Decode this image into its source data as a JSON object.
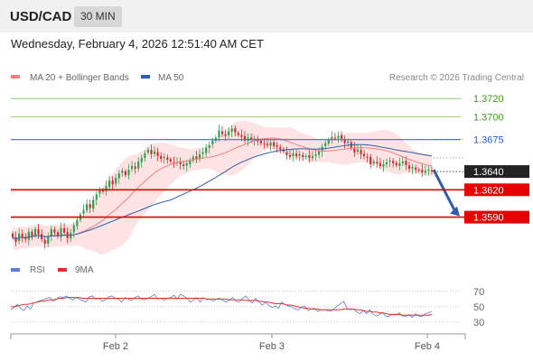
{
  "header": {
    "symbol": "USD/CAD",
    "timeframe": "30 MIN"
  },
  "timestamp": "Wednesday, February 4, 2026 12:51:40 AM CET",
  "legend": {
    "ma20": {
      "label": "MA 20 + Bollinger Bands",
      "color": "#f08080"
    },
    "ma50": {
      "label": "MA 50",
      "color": "#2e5fa8"
    }
  },
  "credit": "Research © 2026 Trading Central",
  "colors": {
    "candle_up": "#2e9e4f",
    "candle_down": "#d42a2a",
    "band_fill": "#fde3e3",
    "resistance": "#7cc45a",
    "pivot": "#3a6fd8",
    "support": "#e60000",
    "rsi": "#5b7fd8",
    "rsi_ma": "#e03030",
    "arrow": "#2e5fa8"
  },
  "chart_data": [
    {
      "type": "candlestick",
      "title": "USD/CAD 30 MIN",
      "ylim": [
        1.3554,
        1.3737
      ],
      "x_ticks": [
        "Feb 2",
        "Feb 3",
        "Feb 4"
      ],
      "levels": [
        {
          "label": "1.3720",
          "value": 1.372,
          "kind": "resistance"
        },
        {
          "label": "1.3700",
          "value": 1.37,
          "kind": "resistance"
        },
        {
          "label": "1.3675",
          "value": 1.3675,
          "kind": "pivot"
        },
        {
          "label": "1.3640",
          "value": 1.364,
          "kind": "last"
        },
        {
          "label": "1.3620",
          "value": 1.362,
          "kind": "support"
        },
        {
          "label": "1.3590",
          "value": 1.359,
          "kind": "support"
        }
      ],
      "close": [
        1.3568,
        1.3563,
        1.3572,
        1.3568,
        1.3566,
        1.3574,
        1.3569,
        1.3577,
        1.3571,
        1.3566,
        1.3561,
        1.3569,
        1.3577,
        1.3573,
        1.3569,
        1.3578,
        1.3573,
        1.3567,
        1.3573,
        1.3581,
        1.3587,
        1.3593,
        1.3598,
        1.3604,
        1.36,
        1.3609,
        1.3615,
        1.362,
        1.3618,
        1.3624,
        1.363,
        1.3626,
        1.3633,
        1.3638,
        1.3641,
        1.3636,
        1.3642,
        1.3646,
        1.3643,
        1.3651,
        1.3655,
        1.366,
        1.3664,
        1.3659,
        1.3662,
        1.3657,
        1.3654,
        1.3656,
        1.3653,
        1.3651,
        1.3649,
        1.365,
        1.3648,
        1.3646,
        1.3649,
        1.3652,
        1.3656,
        1.3654,
        1.3659,
        1.3661,
        1.3666,
        1.3669,
        1.3674,
        1.3677,
        1.3685,
        1.3681,
        1.3679,
        1.3684,
        1.3687,
        1.3683,
        1.368,
        1.3678,
        1.3674,
        1.3677,
        1.3675,
        1.3676,
        1.3673,
        1.3671,
        1.367,
        1.3669,
        1.3672,
        1.3668,
        1.3667,
        1.3664,
        1.3662,
        1.3658,
        1.3656,
        1.366,
        1.3657,
        1.3659,
        1.3656,
        1.3657,
        1.3655,
        1.3657,
        1.3659,
        1.3662,
        1.3667,
        1.3671,
        1.3675,
        1.3678,
        1.3677,
        1.3679,
        1.3676,
        1.3671,
        1.3673,
        1.3666,
        1.3661,
        1.3664,
        1.3659,
        1.3657,
        1.3656,
        1.3648,
        1.3651,
        1.3649,
        1.3646,
        1.3648,
        1.365,
        1.3652,
        1.3649,
        1.3647,
        1.3649,
        1.3651,
        1.3647,
        1.3643,
        1.3645,
        1.3642,
        1.3641,
        1.3639,
        1.3641,
        1.3642,
        1.364
      ]
    },
    {
      "type": "line",
      "title": "RSI",
      "series": [
        {
          "name": "RSI",
          "color": "#5b7fd8"
        },
        {
          "name": "9MA",
          "color": "#e03030"
        }
      ],
      "yticks": [
        70,
        50,
        30
      ],
      "ylim": [
        24,
        78
      ],
      "rsi": [
        46,
        49,
        53,
        48,
        45,
        51,
        47,
        55,
        56,
        58,
        59,
        61,
        62,
        57,
        60,
        63,
        62,
        64,
        61,
        59,
        62,
        60,
        58,
        56,
        63,
        64,
        60,
        61,
        57,
        59,
        63,
        64,
        61,
        60,
        56,
        62,
        60,
        58,
        62,
        64,
        60,
        59,
        61,
        63,
        66,
        60,
        61,
        58,
        61,
        62,
        65,
        60,
        66,
        64,
        61,
        56,
        59,
        62,
        56,
        62,
        59,
        60,
        57,
        60,
        61,
        58,
        56,
        59,
        62,
        57,
        56,
        61,
        64,
        58,
        55,
        61,
        57,
        52,
        56,
        52,
        49,
        51,
        48,
        56,
        53,
        51,
        50,
        47,
        46,
        49,
        51,
        45,
        47,
        48,
        44,
        46,
        46,
        45,
        44,
        47,
        51,
        54,
        57,
        48,
        46,
        47,
        43,
        41,
        45,
        41,
        46,
        40,
        38,
        40,
        42,
        37,
        38,
        40,
        39,
        42,
        38,
        37,
        40,
        36,
        41,
        38,
        37,
        41,
        42,
        44
      ],
      "ma9": [
        50,
        50,
        51,
        52,
        53,
        53,
        54,
        55,
        56,
        57,
        57,
        58,
        59,
        59,
        60,
        61,
        61,
        62,
        62,
        62,
        62,
        62,
        61,
        61,
        61,
        61,
        61,
        61,
        61,
        61,
        61,
        61,
        61,
        61,
        61,
        61,
        61,
        61,
        61,
        61,
        61,
        61,
        61,
        61,
        61,
        61,
        61,
        61,
        61,
        61,
        61,
        61,
        61,
        61,
        61,
        61,
        61,
        61,
        61,
        61,
        60,
        60,
        60,
        60,
        60,
        60,
        60,
        59,
        59,
        59,
        59,
        59,
        58,
        58,
        58,
        58,
        57,
        57,
        56,
        56,
        55,
        54,
        54,
        54,
        53,
        52,
        52,
        51,
        50,
        49,
        48,
        48,
        47,
        47,
        47,
        46,
        46,
        46,
        46,
        46,
        46,
        46,
        47,
        47,
        47,
        47,
        46,
        46,
        45,
        44,
        44,
        43,
        43,
        42,
        42,
        41,
        40,
        40,
        40,
        40,
        39,
        39,
        39,
        39,
        39,
        39,
        39,
        39,
        39,
        40
      ]
    }
  ],
  "rsi_legend": {
    "rsi_label": "RSI",
    "ma_label": "9MA"
  },
  "x_axis": {
    "labels": [
      "Feb 2",
      "Feb 3",
      "Feb 4"
    ]
  }
}
